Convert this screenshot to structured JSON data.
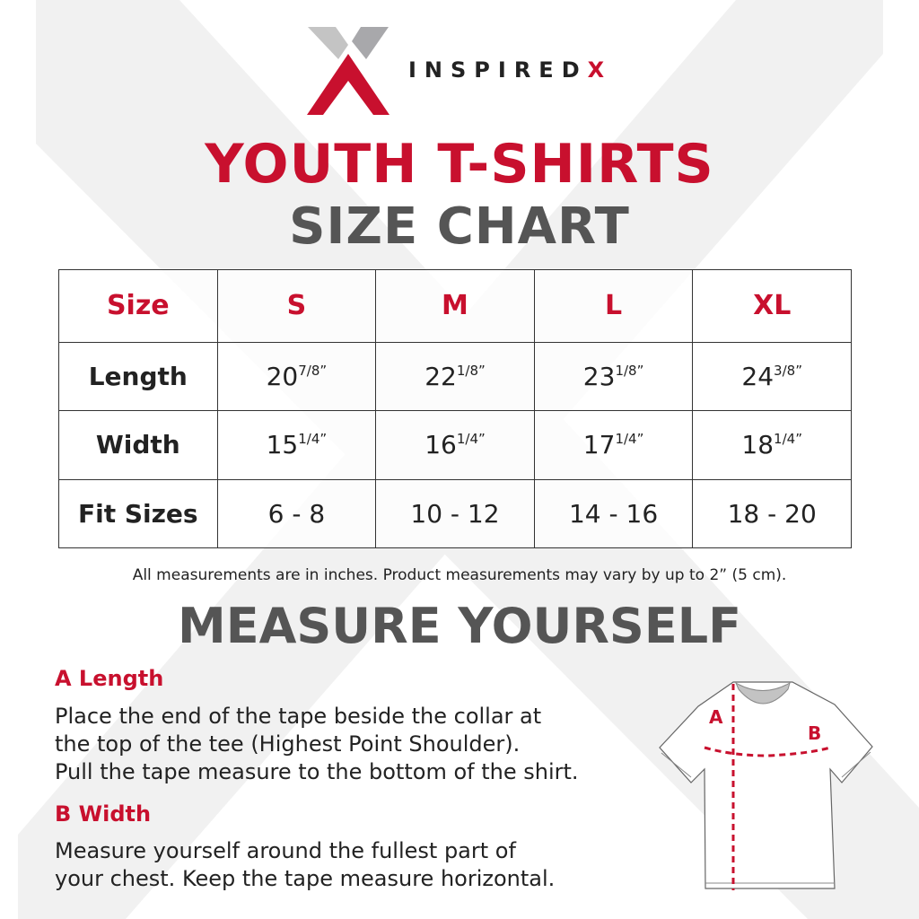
{
  "brand": {
    "name": "INSPIRED",
    "name_accent": "X"
  },
  "title": {
    "line1": "YOUTH T-SHIRTS",
    "line2": "SIZE CHART"
  },
  "table": {
    "header": [
      "Size",
      "S",
      "M",
      "L",
      "XL"
    ],
    "rows": [
      {
        "label": "Length",
        "cells": [
          {
            "whole": "20",
            "frac": "7/8”"
          },
          {
            "whole": "22",
            "frac": "1/8”"
          },
          {
            "whole": "23",
            "frac": "1/8”"
          },
          {
            "whole": "24",
            "frac": "3/8”"
          }
        ]
      },
      {
        "label": "Width",
        "cells": [
          {
            "whole": "15",
            "frac": "1/4”"
          },
          {
            "whole": "16",
            "frac": "1/4”"
          },
          {
            "whole": "17",
            "frac": "1/4”"
          },
          {
            "whole": "18",
            "frac": "1/4”"
          }
        ]
      },
      {
        "label": "Fit Sizes",
        "cells": [
          {
            "whole": "6 - 8",
            "frac": ""
          },
          {
            "whole": "10 - 12",
            "frac": ""
          },
          {
            "whole": "14 - 16",
            "frac": ""
          },
          {
            "whole": "18 - 20",
            "frac": ""
          }
        ]
      }
    ]
  },
  "note": "All measurements are in inches. Product measurements may vary by up to 2” (5 cm).",
  "measure": {
    "title": "MEASURE YOURSELF",
    "a_title": "A Length",
    "a_lines": [
      "Place the end of the tape beside the collar at",
      "the top of the tee (Highest Point Shoulder).",
      "Pull the tape measure to the bottom of the shirt."
    ],
    "b_title": "B Width",
    "b_lines": [
      "Measure yourself around the fullest part of",
      "your chest. Keep the tape measure horizontal."
    ],
    "label_a": "A",
    "label_b": "B"
  },
  "colors": {
    "accent": "#c8102e",
    "gray": "#555555",
    "watermark": "#f0f0f0"
  }
}
